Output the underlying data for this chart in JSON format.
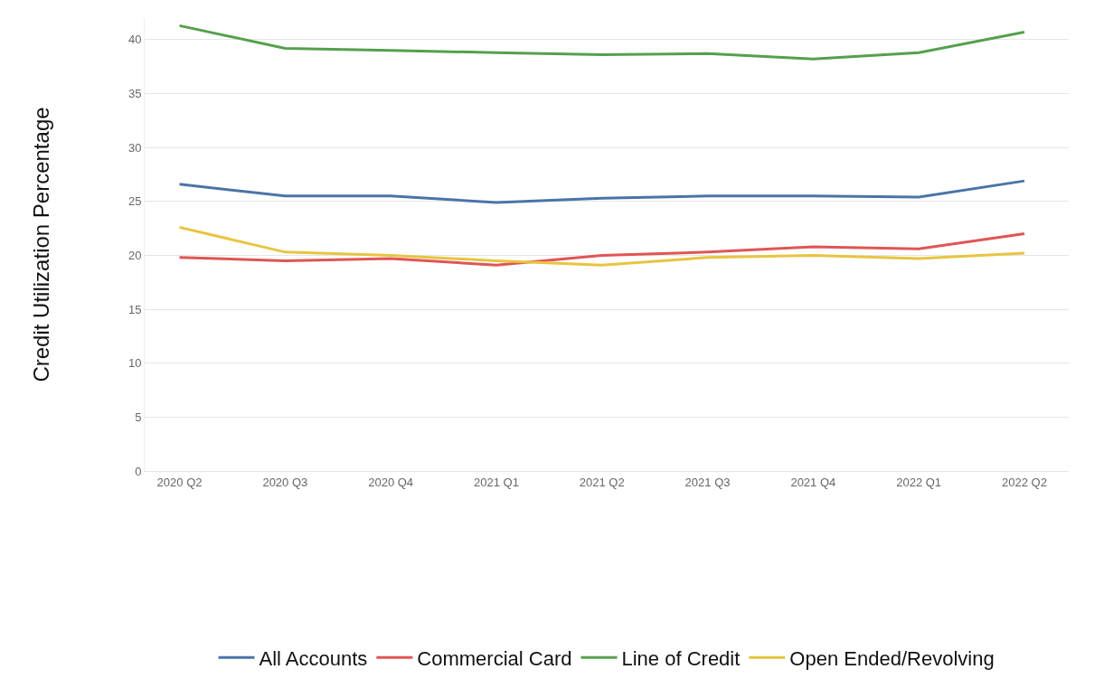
{
  "chart_data": {
    "type": "line",
    "ylabel": "Credit Utilization Percentage",
    "categories": [
      "2020 Q2",
      "2020 Q3",
      "2020 Q4",
      "2021 Q1",
      "2021 Q2",
      "2021 Q3",
      "2021 Q4",
      "2022 Q1",
      "2022 Q2"
    ],
    "series": [
      {
        "name": "All Accounts",
        "color": "#4a74a8",
        "values": [
          26.6,
          25.5,
          25.5,
          24.9,
          25.3,
          25.5,
          25.5,
          25.4,
          26.9
        ]
      },
      {
        "name": "Commercial Card",
        "color": "#e05555",
        "values": [
          19.8,
          19.5,
          19.7,
          19.1,
          20.0,
          20.3,
          20.8,
          20.6,
          22.0
        ]
      },
      {
        "name": "Line of Credit",
        "color": "#55a04d",
        "values": [
          41.3,
          39.2,
          39.0,
          38.8,
          38.6,
          38.7,
          38.2,
          38.8,
          40.7
        ]
      },
      {
        "name": "Open Ended/Revolving",
        "color": "#e8c440",
        "values": [
          22.6,
          20.3,
          20.0,
          19.5,
          19.1,
          19.8,
          20.0,
          19.7,
          20.2
        ]
      }
    ],
    "ylim": [
      0,
      42
    ],
    "yticks": [
      0,
      5,
      10,
      15,
      20,
      25,
      30,
      35,
      40
    ],
    "grid": "y",
    "legend": "bottom",
    "marker": "none",
    "line_style": "solid"
  }
}
